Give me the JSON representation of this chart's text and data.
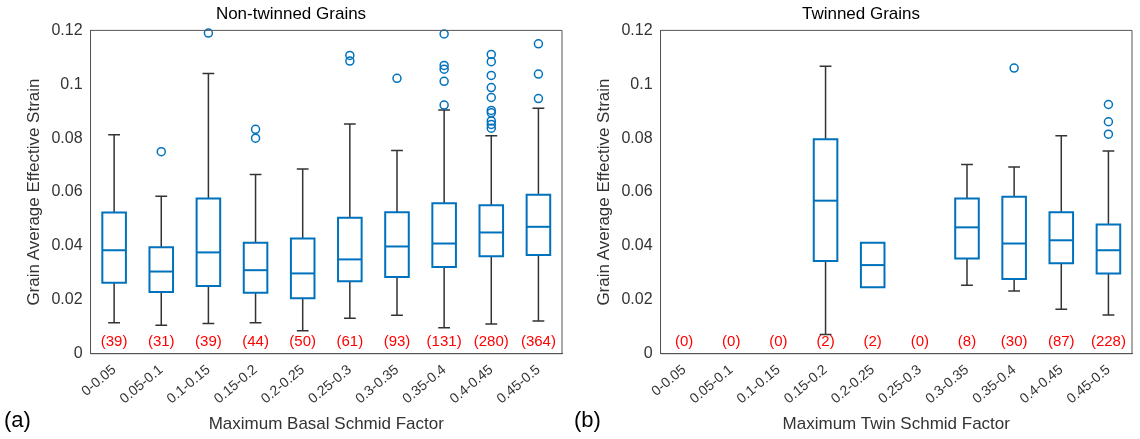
{
  "chart_data": [
    {
      "type": "box",
      "title": "Non-twinned Grains",
      "xlabel": "Maximum Basal Schmid Factor",
      "ylabel": "Grain Average Effective Strain",
      "categories": [
        "0-0.05",
        "0.05-0.1",
        "0.1-0.15",
        "0.15-0.2",
        "0.2-0.25",
        "0.25-0.3",
        "0.3-0.35",
        "0.35-0.4",
        "0.4-0.45",
        "0.45-0.5"
      ],
      "color": "#0072bd",
      "ylim": [
        0,
        0.12
      ],
      "yticks": [
        0,
        0.02,
        0.04,
        0.06,
        0.08,
        {
          "value": 0.1,
          "label": "0.1"
        },
        0.12
      ],
      "grid": false,
      "boxes": [
        {
          "low": 0.0115,
          "q1": 0.0263,
          "median": 0.0384,
          "q3": 0.0524,
          "high": 0.0813
        },
        {
          "low": 0.0106,
          "q1": 0.0229,
          "median": 0.0305,
          "q3": 0.0395,
          "high": 0.0584,
          "outliers": [
            0.075
          ]
        },
        {
          "low": 0.0112,
          "q1": 0.0251,
          "median": 0.0376,
          "q3": 0.0576,
          "high": 0.104,
          "outliers": [
            0.119
          ]
        },
        {
          "low": 0.0115,
          "q1": 0.0226,
          "median": 0.031,
          "q3": 0.0412,
          "high": 0.0665,
          "outliers": [
            0.0833,
            0.08
          ]
        },
        {
          "low": 0.0085,
          "q1": 0.0206,
          "median": 0.0298,
          "q3": 0.0428,
          "high": 0.0686
        },
        {
          "low": 0.0132,
          "q1": 0.0269,
          "median": 0.035,
          "q3": 0.0505,
          "high": 0.0853,
          "outliers": [
            0.1107,
            0.1086
          ]
        },
        {
          "low": 0.0143,
          "q1": 0.0285,
          "median": 0.0398,
          "q3": 0.0525,
          "high": 0.0754,
          "outliers": [
            0.1022
          ]
        },
        {
          "low": 0.0096,
          "q1": 0.0322,
          "median": 0.0409,
          "q3": 0.0558,
          "high": 0.0905,
          "outliers": [
            0.1187,
            0.107,
            0.1056,
            0.1011,
            0.0923
          ]
        },
        {
          "low": 0.011,
          "q1": 0.0362,
          "median": 0.045,
          "q3": 0.0551,
          "high": 0.0809,
          "outliers": [
            0.1111,
            0.1084,
            0.1033,
            0.0988,
            0.0951,
            0.0903,
            0.0894,
            0.0864,
            0.0851,
            0.0837
          ]
        },
        {
          "low": 0.0121,
          "q1": 0.0366,
          "median": 0.0471,
          "q3": 0.059,
          "high": 0.0911,
          "outliers": [
            0.115,
            0.1038,
            0.0947
          ]
        }
      ],
      "annotations": [
        "(a)",
        "(39)",
        "(31)",
        "(39)",
        "(44)",
        "(50)",
        "(61)",
        "(93)",
        "(131)",
        "(280)",
        "(364)"
      ]
    },
    {
      "type": "box",
      "title": "Twinned Grains",
      "xlabel": "Maximum Twin Schmid Factor",
      "ylabel": "Grain Average Effective Strain",
      "categories": [
        "0-0.05",
        "0.05-0.1",
        "0.1-0.15",
        "0.15-0.2",
        "0.2-0.25",
        "0.25-0.3",
        "0.3-0.35",
        "0.35-0.4",
        "0.4-0.45",
        "0.45-0.5"
      ],
      "color": "#0072bd",
      "ylim": [
        0,
        0.12
      ],
      "yticks": [
        0,
        0.02,
        0.04,
        0.06,
        0.08,
        {
          "value": 0.1,
          "label": "0.1"
        },
        0.12
      ],
      "grid": false,
      "boxes": [
        null,
        null,
        null,
        {
          "low": 0.0071,
          "q1": 0.0344,
          "median": 0.0568,
          "q3": 0.0796,
          "high": 0.1067
        },
        {
          "low": 0.0247,
          "q1": 0.0247,
          "median": 0.0329,
          "q3": 0.0412,
          "high": 0.0412
        },
        null,
        {
          "low": 0.0254,
          "q1": 0.0353,
          "median": 0.0469,
          "q3": 0.0576,
          "high": 0.0702
        },
        {
          "low": 0.0233,
          "q1": 0.0277,
          "median": 0.0409,
          "q3": 0.0583,
          "high": 0.0693,
          "outliers": [
            0.106
          ]
        },
        {
          "low": 0.0165,
          "q1": 0.0336,
          "median": 0.0421,
          "q3": 0.0525,
          "high": 0.0809
        },
        {
          "low": 0.0144,
          "q1": 0.0298,
          "median": 0.0384,
          "q3": 0.048,
          "high": 0.0752,
          "outliers": [
            0.0925,
            0.0861,
            0.0815
          ]
        }
      ],
      "annotations": [
        "(b)",
        "(0)",
        "(0)",
        "(0)",
        "(2)",
        "(2)",
        "(0)",
        "(8)",
        "(30)",
        "(87)",
        "(228)"
      ]
    }
  ]
}
